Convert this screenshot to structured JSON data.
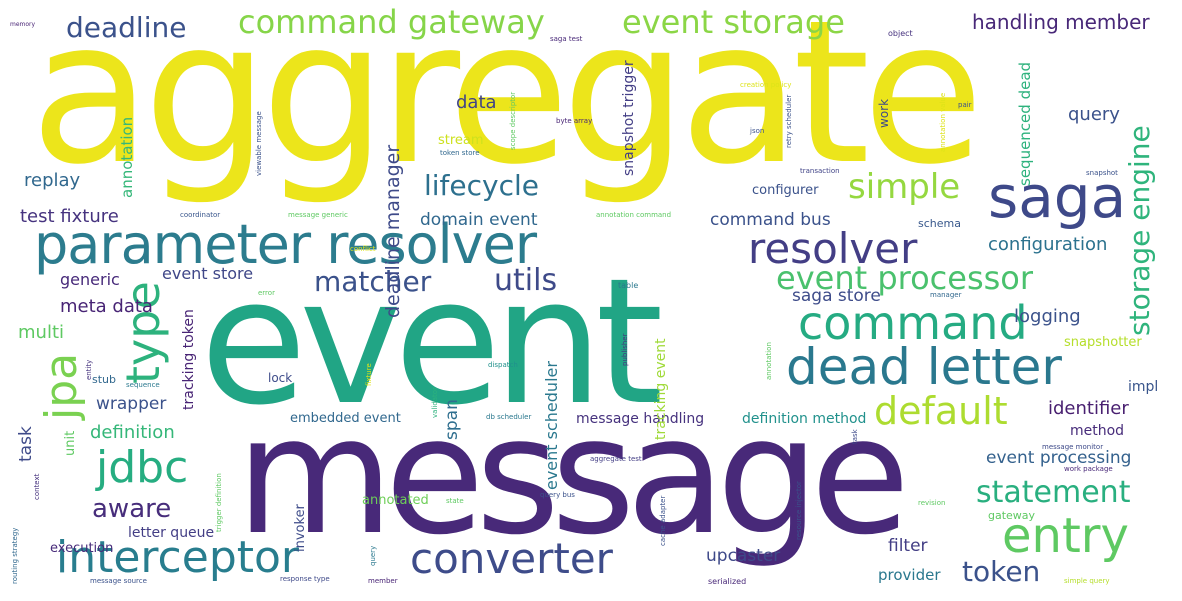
{
  "words": [
    {
      "text": "aggregate",
      "color": "#ece51b"
    },
    {
      "text": "event",
      "color": "#21a585"
    },
    {
      "text": "message",
      "color": "#482979"
    },
    {
      "text": "parameter resolver",
      "color": "#2c7c8e"
    },
    {
      "text": "saga",
      "color": "#3e4989"
    },
    {
      "text": "dead letter",
      "color": "#2a788e"
    },
    {
      "text": "command",
      "color": "#25ab82"
    },
    {
      "text": "interceptor",
      "color": "#287d8e"
    },
    {
      "text": "converter",
      "color": "#3e4c8a"
    },
    {
      "text": "entry",
      "color": "#5ec962"
    },
    {
      "text": "resolver",
      "color": "#433e85"
    },
    {
      "text": "jdbc",
      "color": "#26ad81"
    },
    {
      "text": "default",
      "color": "#addc30"
    },
    {
      "text": "simple",
      "color": "#95d840"
    },
    {
      "text": "event processor",
      "color": "#4ac16d"
    },
    {
      "text": "command gateway",
      "color": "#86d549"
    },
    {
      "text": "event storage",
      "color": "#8bd646"
    },
    {
      "text": "deadline",
      "color": "#3b528b"
    },
    {
      "text": "lifecycle",
      "color": "#2d708e"
    },
    {
      "text": "matcher",
      "color": "#3b528b"
    },
    {
      "text": "utils",
      "color": "#3e4a89"
    },
    {
      "text": "type",
      "color": "#2db27d"
    },
    {
      "text": "jpa",
      "color": "#7ad151"
    },
    {
      "text": "statement",
      "color": "#29af7f"
    },
    {
      "text": "token",
      "color": "#3b528b"
    },
    {
      "text": "aware",
      "color": "#472d7b"
    },
    {
      "text": "storage engine",
      "color": "#2fb47c"
    },
    {
      "text": "handling member",
      "color": "#482878"
    },
    {
      "text": "query",
      "color": "#3b528b"
    },
    {
      "text": "data",
      "color": "#414487"
    },
    {
      "text": "replay",
      "color": "#31688e"
    },
    {
      "text": "test fixture",
      "color": "#46337f"
    },
    {
      "text": "deadline manager",
      "color": "#3e4a89"
    },
    {
      "text": "domain event",
      "color": "#31688e"
    },
    {
      "text": "command bus",
      "color": "#3b528b"
    },
    {
      "text": "configuration",
      "color": "#2c728e"
    },
    {
      "text": "schema",
      "color": "#38588c"
    },
    {
      "text": "generic",
      "color": "#472a7a"
    },
    {
      "text": "event store",
      "color": "#3f4788"
    },
    {
      "text": "meta data",
      "color": "#482475"
    },
    {
      "text": "multi",
      "color": "#5ec962"
    },
    {
      "text": "saga store",
      "color": "#3e4c8a"
    },
    {
      "text": "logging",
      "color": "#3b528b"
    },
    {
      "text": "wrapper",
      "color": "#3b528b"
    },
    {
      "text": "span",
      "color": "#2e6e8e"
    },
    {
      "text": "identifier",
      "color": "#481f70"
    },
    {
      "text": "definition",
      "color": "#35b779"
    },
    {
      "text": "message handling",
      "color": "#46327e"
    },
    {
      "text": "definition method",
      "color": "#21918c"
    },
    {
      "text": "method",
      "color": "#472c7a"
    },
    {
      "text": "event processing",
      "color": "#34618d"
    },
    {
      "text": "task",
      "color": "#3e4a89"
    },
    {
      "text": "unit",
      "color": "#5ec962"
    },
    {
      "text": "embedded event",
      "color": "#31688e"
    },
    {
      "text": "upcaster",
      "color": "#3e4989"
    },
    {
      "text": "filter",
      "color": "#433e85"
    },
    {
      "text": "provider",
      "color": "#2a788e"
    },
    {
      "text": "annotated",
      "color": "#6ece58"
    },
    {
      "text": "letter queue",
      "color": "#433e85"
    },
    {
      "text": "execution",
      "color": "#472a7a"
    },
    {
      "text": "impl",
      "color": "#39558c"
    },
    {
      "text": "snapshotter",
      "color": "#b5de2b"
    },
    {
      "text": "configurer",
      "color": "#3b528b"
    },
    {
      "text": "tracking token",
      "color": "#482475"
    },
    {
      "text": "event scheduler",
      "color": "#2a788e"
    },
    {
      "text": "annotation",
      "color": "#35b779"
    },
    {
      "text": "stream",
      "color": "#cde11d"
    },
    {
      "text": "snapshot trigger",
      "color": "#433e85"
    },
    {
      "text": "tracking event",
      "color": "#a0da39"
    },
    {
      "text": "sequenced dead",
      "color": "#2db27d"
    },
    {
      "text": "invoker",
      "color": "#3e4c8a"
    },
    {
      "text": "work",
      "color": "#3e4989"
    },
    {
      "text": "lock",
      "color": "#3e4c8a"
    },
    {
      "text": "stub",
      "color": "#31688e"
    },
    {
      "text": "memory",
      "color": "#482475"
    },
    {
      "text": "saga test",
      "color": "#482878"
    },
    {
      "text": "object",
      "color": "#46327e"
    },
    {
      "text": "viewable message",
      "color": "#3b528b"
    },
    {
      "text": "byte array",
      "color": "#482475"
    },
    {
      "text": "creation policy",
      "color": "#dde318"
    },
    {
      "text": "token store",
      "color": "#31688e"
    },
    {
      "text": "retry scheduler",
      "color": "#3b528b"
    },
    {
      "text": "transaction",
      "color": "#414487"
    },
    {
      "text": "message generic",
      "color": "#5ec962"
    },
    {
      "text": "annotation command",
      "color": "#5ec962"
    },
    {
      "text": "coordinator",
      "color": "#39568c"
    },
    {
      "text": "conflict",
      "color": "#dde318"
    },
    {
      "text": "table",
      "color": "#2a788e"
    },
    {
      "text": "manager",
      "color": "#31688e"
    },
    {
      "text": "error",
      "color": "#5ec962"
    },
    {
      "text": "entity",
      "color": "#46337f"
    },
    {
      "text": "sequence",
      "color": "#2a788e"
    },
    {
      "text": "dispatch",
      "color": "#21918c"
    },
    {
      "text": "publisher",
      "color": "#46337f"
    },
    {
      "text": "validator",
      "color": "#2db27d"
    },
    {
      "text": "db scheduler",
      "color": "#2a788e"
    },
    {
      "text": "message monitor",
      "color": "#3e4a89"
    },
    {
      "text": "work package",
      "color": "#482878"
    },
    {
      "text": "aggregate test",
      "color": "#433e85"
    },
    {
      "text": "query bus",
      "color": "#3b528b"
    },
    {
      "text": "routing strategy",
      "color": "#31688e"
    },
    {
      "text": "context",
      "color": "#46327e"
    },
    {
      "text": "message source",
      "color": "#3b528b"
    },
    {
      "text": "response type",
      "color": "#3e4989"
    },
    {
      "text": "member",
      "color": "#482475"
    },
    {
      "text": "serialized",
      "color": "#482878"
    },
    {
      "text": "simple query",
      "color": "#b5de2b"
    },
    {
      "text": "revision",
      "color": "#5ec962"
    },
    {
      "text": "gateway",
      "color": "#5ec962"
    },
    {
      "text": "cache adapter",
      "color": "#3b528b"
    },
    {
      "text": "resource injector",
      "color": "#3b528b"
    },
    {
      "text": "trigger definition",
      "color": "#5ec962"
    },
    {
      "text": "state",
      "color": "#5ec962"
    },
    {
      "text": "query",
      "color": "#2a788e"
    },
    {
      "text": "snapshot",
      "color": "#3b528b"
    },
    {
      "text": "json",
      "color": "#3b528b"
    },
    {
      "text": "pair",
      "color": "#3b528b"
    },
    {
      "text": "annotation value",
      "color": "#dde318"
    },
    {
      "text": "scope descriptor",
      "color": "#5ec962"
    },
    {
      "text": "annotation",
      "color": "#5ec962"
    },
    {
      "text": "task",
      "color": "#3e4a89"
    },
    {
      "text": "fixture",
      "color": "#dde318"
    }
  ]
}
